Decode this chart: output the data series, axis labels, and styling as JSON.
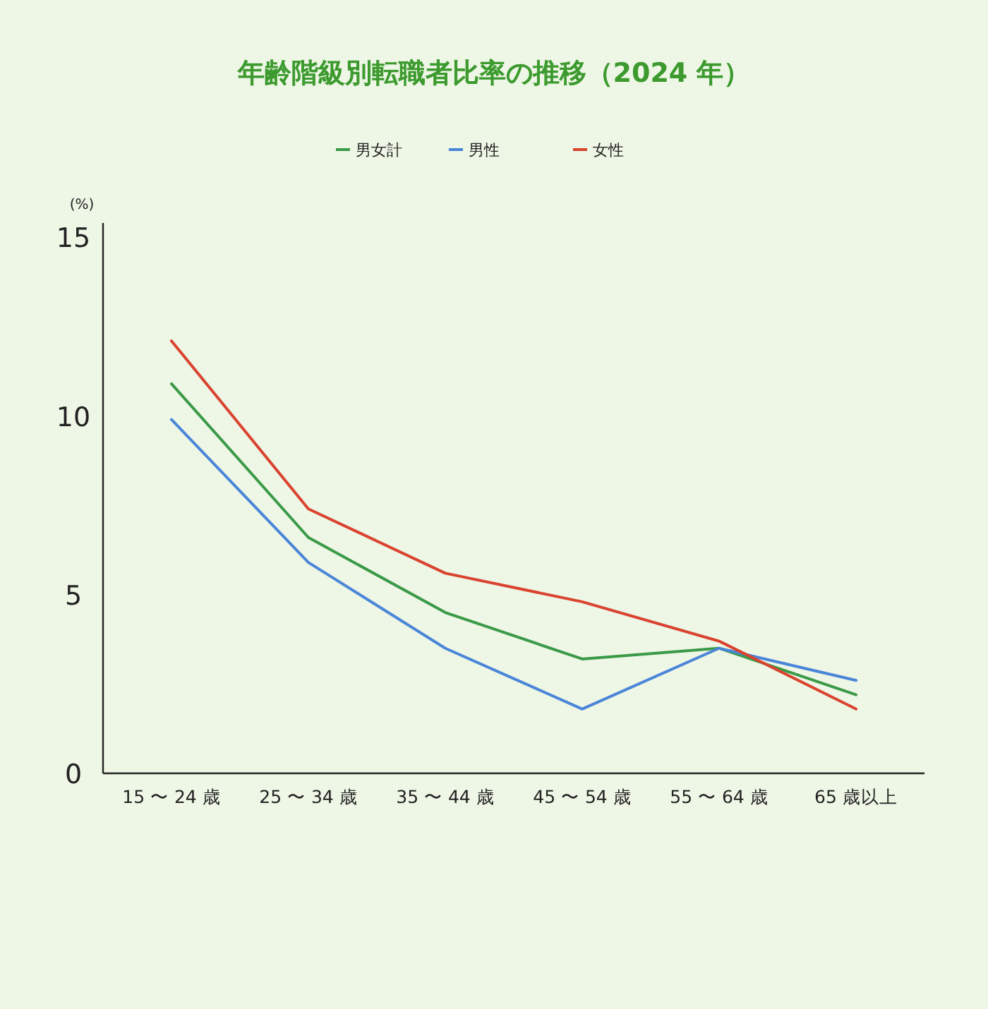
{
  "chart_data": {
    "type": "line",
    "title": "年齢階級別転職者比率の推移（2024 年）",
    "ylabel": "(%)",
    "categories": [
      "15 〜 24 歳",
      "25 〜 34 歳",
      "35 〜 44 歳",
      "45 〜 54 歳",
      "55 〜 64 歳",
      "65 歳以上"
    ],
    "series": [
      {
        "name": "男女計",
        "color": "#3a9a48",
        "values": [
          10.9,
          6.6,
          4.5,
          3.2,
          3.5,
          2.2
        ]
      },
      {
        "name": "男性",
        "color": "#4a86d8",
        "values": [
          9.9,
          5.9,
          3.5,
          1.8,
          3.5,
          2.6
        ]
      },
      {
        "name": "女性",
        "color": "#d9432f",
        "values": [
          12.1,
          7.4,
          5.6,
          4.8,
          3.7,
          1.8
        ]
      }
    ],
    "ylim": [
      0,
      15.4
    ],
    "yticks": [
      0,
      5,
      10,
      15
    ],
    "grid": false,
    "legend": "top",
    "marker": "none",
    "line_style": "solid"
  }
}
